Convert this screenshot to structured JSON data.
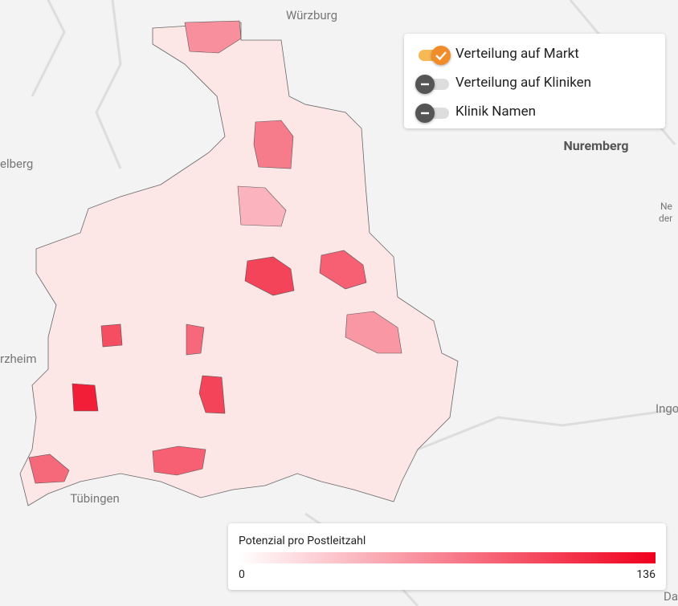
{
  "map": {
    "places": [
      "Würzburg",
      "Nuremberg",
      "elberg",
      "rzheim",
      "Tübingen",
      "Ingo",
      "Ne",
      "der",
      "Da"
    ],
    "region_values": [
      60,
      70,
      100,
      85,
      55,
      120,
      100,
      95,
      80,
      85,
      80,
      40
    ],
    "toggles": [
      {
        "label": "Verteilung auf Markt",
        "on": true
      },
      {
        "label": "Verteilung auf Kliniken",
        "on": false
      },
      {
        "label": "Klinik Namen",
        "on": false
      }
    ],
    "legend": {
      "title": "Potenzial pro Postleitzahl",
      "min": 0,
      "max": 136,
      "color_low": "#ffffff",
      "color_high": "#f0001e"
    }
  }
}
